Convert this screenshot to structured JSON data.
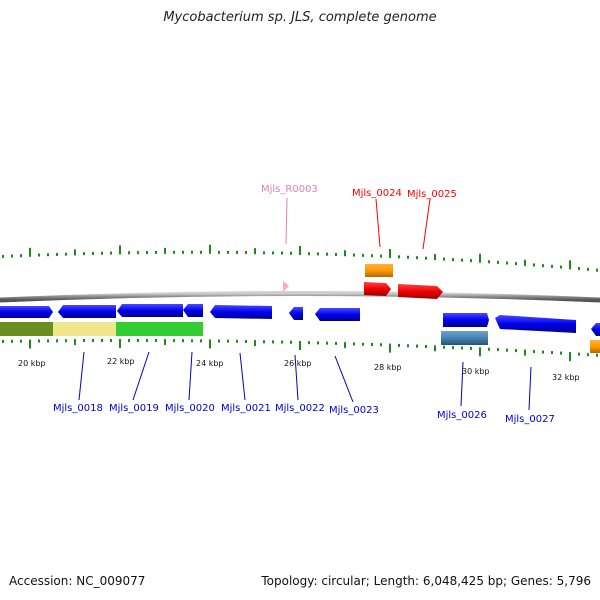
{
  "title": "Mycobacterium sp. JLS, complete genome",
  "footer": {
    "accession": "Accession: NC_009077",
    "summary": "Topology: circular; Length: 6,048,425 bp; Genes: 5,796"
  },
  "colors": {
    "cds": "#0000ff",
    "rrna_trna": "#ff0000",
    "orange": "#ff9900",
    "steel": "#4682b4",
    "pink_label": "#e080b0",
    "ticks": "#1a8a1a",
    "backbone": "#888888"
  },
  "scale": [
    {
      "label": "20 kbp"
    },
    {
      "label": "22 kbp"
    },
    {
      "label": "24 kbp"
    },
    {
      "label": "26 kbp"
    },
    {
      "label": "28 kbp"
    },
    {
      "label": "30 kbp"
    },
    {
      "label": "32 kbp"
    }
  ],
  "gene_labels_top": [
    {
      "text": "Mjls_R0003",
      "color": "#e080b0"
    },
    {
      "text": "Mjls_0024",
      "color": "#ff0000"
    },
    {
      "text": "Mjls_0025",
      "color": "#ff0000"
    }
  ],
  "gene_labels_bottom": [
    {
      "text": "Mjls_0018"
    },
    {
      "text": "Mjls_0019"
    },
    {
      "text": "Mjls_0020"
    },
    {
      "text": "Mjls_0021"
    },
    {
      "text": "Mjls_0022"
    },
    {
      "text": "Mjls_0023"
    },
    {
      "text": "Mjls_0026"
    },
    {
      "text": "Mjls_0027"
    }
  ]
}
